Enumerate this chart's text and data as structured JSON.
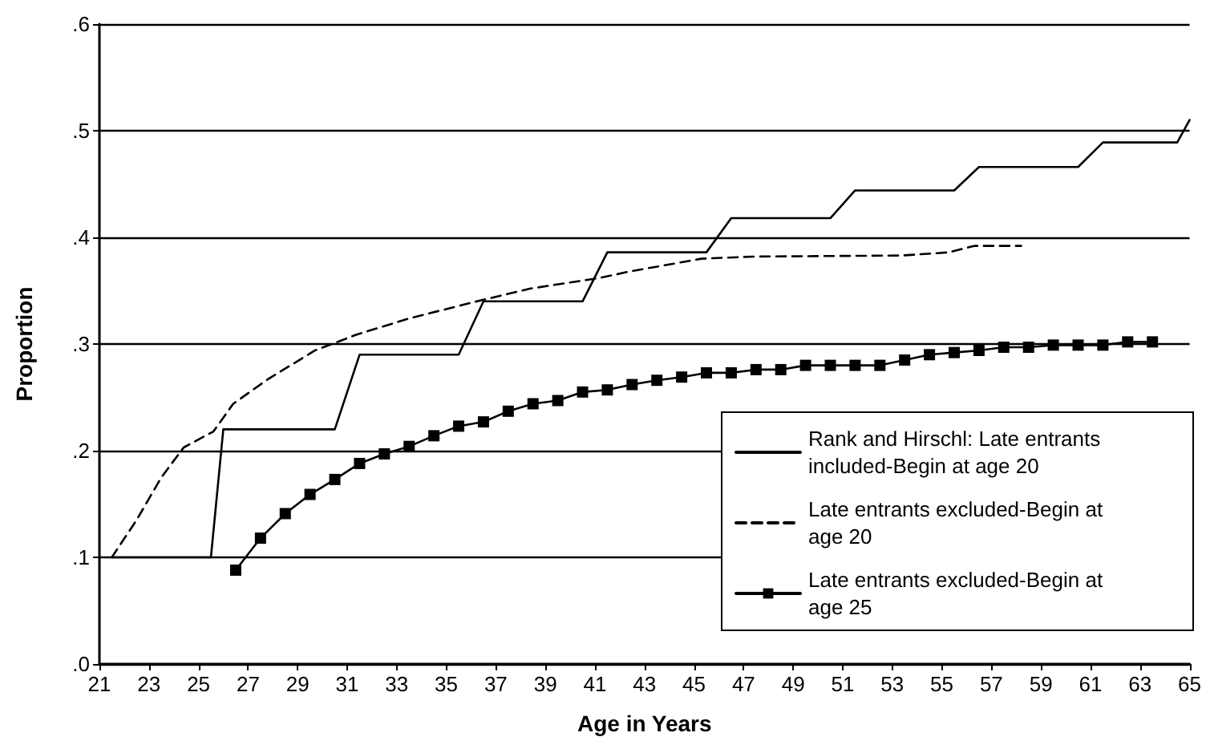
{
  "chart_data": {
    "type": "line",
    "xlabel": "Age in Years",
    "ylabel": "Proportion",
    "xlim": [
      21,
      65
    ],
    "xticks": [
      21,
      23,
      25,
      27,
      29,
      31,
      33,
      35,
      37,
      39,
      41,
      43,
      45,
      47,
      49,
      51,
      53,
      55,
      57,
      59,
      61,
      63,
      65
    ],
    "ylim": [
      0,
      0.6
    ],
    "yticks": [
      {
        "value": 0,
        "label": ".0"
      },
      {
        "value": 0.1,
        "label": ".1"
      },
      {
        "value": 0.2,
        "label": ".2"
      },
      {
        "value": 0.3,
        "label": ".3"
      },
      {
        "value": 0.4,
        "label": ".4"
      },
      {
        "value": 0.5,
        "label": ".5"
      },
      {
        "value": 0.6,
        "label": ".6"
      }
    ],
    "grid": "y",
    "legend": "bottom right",
    "series": [
      {
        "name": "Rank and Hirschl: Late entrants included-Begin at age 20",
        "color": "#000000",
        "line_style": "solid",
        "marker": "none",
        "x": [
          21.5,
          25.5,
          26,
          30.5,
          31.5,
          35.5,
          36.5,
          40.5,
          41.5,
          45.5,
          46.5,
          50.5,
          51.5,
          55.5,
          56.5,
          60.5,
          61.5,
          64.5,
          65
        ],
        "values": [
          0.1,
          0.1,
          0.22,
          0.22,
          0.29,
          0.29,
          0.34,
          0.34,
          0.386,
          0.386,
          0.418,
          0.418,
          0.444,
          0.444,
          0.466,
          0.466,
          0.489,
          0.489,
          0.51
        ]
      },
      {
        "name": "Late entrants excluded-Begin at age 20",
        "color": "#000000",
        "line_style": "dashed",
        "marker": "none",
        "x": [
          21.5,
          22.5,
          23.5,
          24.4,
          25.6,
          26.4,
          27.8,
          29.7,
          31.4,
          33.5,
          36.4,
          38.4,
          41.2,
          42.4,
          45.3,
          47.4,
          53.4,
          55.3,
          56.3,
          58.2
        ],
        "values": [
          0.1,
          0.135,
          0.175,
          0.203,
          0.218,
          0.244,
          0.267,
          0.294,
          0.309,
          0.324,
          0.341,
          0.352,
          0.362,
          0.368,
          0.38,
          0.382,
          0.383,
          0.386,
          0.392,
          0.392
        ]
      },
      {
        "name": "Late entrants excluded-Begin at age 25",
        "color": "#000000",
        "line_style": "solid",
        "marker": "square",
        "x": [
          26.5,
          27.5,
          28.5,
          29.5,
          30.5,
          31.5,
          32.5,
          33.5,
          34.5,
          35.5,
          36.5,
          37.5,
          38.5,
          39.5,
          40.5,
          41.5,
          42.5,
          43.5,
          44.5,
          45.5,
          46.5,
          47.5,
          48.5,
          49.5,
          50.5,
          51.5,
          52.5,
          53.5,
          54.5,
          55.5,
          56.5,
          57.5,
          58.5,
          59.5,
          60.5,
          61.5,
          62.5,
          63.5
        ],
        "values": [
          0.088,
          0.118,
          0.141,
          0.159,
          0.173,
          0.188,
          0.197,
          0.204,
          0.214,
          0.223,
          0.227,
          0.237,
          0.244,
          0.247,
          0.255,
          0.257,
          0.262,
          0.266,
          0.269,
          0.273,
          0.273,
          0.276,
          0.276,
          0.28,
          0.28,
          0.28,
          0.28,
          0.285,
          0.29,
          0.292,
          0.294,
          0.297,
          0.297,
          0.299,
          0.299,
          0.299,
          0.302,
          0.302
        ]
      }
    ]
  }
}
